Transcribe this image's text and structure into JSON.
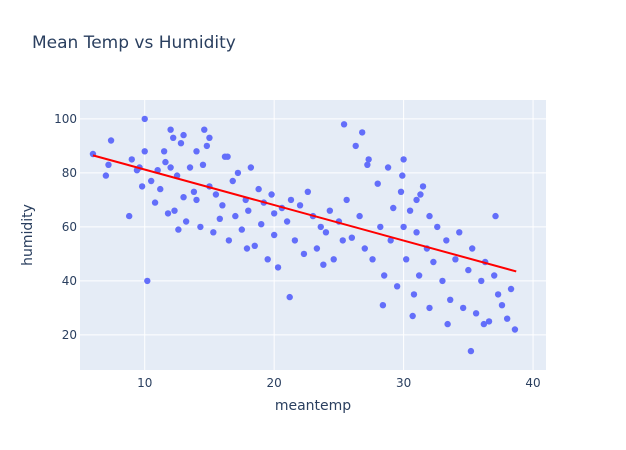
{
  "chart_data": {
    "type": "scatter",
    "title": "Mean Temp vs Humidity",
    "xlabel": "meantemp",
    "ylabel": "humidity",
    "xlim": [
      5,
      41
    ],
    "ylim": [
      7,
      107
    ],
    "x_ticks": [
      10,
      20,
      30,
      40
    ],
    "y_ticks": [
      20,
      40,
      60,
      80,
      100
    ],
    "grid": true,
    "legend": "none",
    "marker_color": "#636efa",
    "plot_background": "#e5ecf6",
    "trendline": {
      "color": "#ff0000",
      "x": [
        6.0,
        38.7
      ],
      "y": [
        86.5,
        43.5
      ]
    },
    "series": [
      {
        "x": [
          6.0,
          7.0,
          7.4,
          7.2,
          8.8,
          9.0,
          9.4,
          9.6,
          9.8,
          10.0,
          10.0,
          10.5,
          10.8,
          11.0,
          11.2,
          11.5,
          11.8,
          12.0,
          12.0,
          12.3,
          12.5,
          12.8,
          13.0,
          13.0,
          13.2,
          13.5,
          13.8,
          14.0,
          14.0,
          14.3,
          14.5,
          14.8,
          15.0,
          15.0,
          15.3,
          15.5,
          15.8,
          16.0,
          16.2,
          16.5,
          16.8,
          17.0,
          17.2,
          17.5,
          17.8,
          18.0,
          18.2,
          18.5,
          18.8,
          19.0,
          19.2,
          19.5,
          19.8,
          20.0,
          20.0,
          20.3,
          20.6,
          21.0,
          21.3,
          21.6,
          22.0,
          22.3,
          22.6,
          23.0,
          23.3,
          23.6,
          24.0,
          24.3,
          24.6,
          25.0,
          25.3,
          25.6,
          26.0,
          26.3,
          26.6,
          27.0,
          27.3,
          27.6,
          28.0,
          28.2,
          28.5,
          28.8,
          29.0,
          29.2,
          29.5,
          29.8,
          30.0,
          30.0,
          30.2,
          30.5,
          30.8,
          31.0,
          31.0,
          31.2,
          31.5,
          31.8,
          32.0,
          32.0,
          32.3,
          32.6,
          33.0,
          33.3,
          33.6,
          34.0,
          34.3,
          34.6,
          35.0,
          35.3,
          35.6,
          36.0,
          36.3,
          36.6,
          37.0,
          37.3,
          37.6,
          38.0,
          38.3,
          38.6,
          12.2,
          14.6,
          16.4,
          25.4,
          26.8,
          27.2,
          29.9,
          31.3,
          35.2,
          37.1,
          10.2,
          12.6,
          17.9,
          21.2,
          23.8,
          28.4,
          30.7,
          33.4,
          36.2,
          11.6
        ],
        "y": [
          87,
          79,
          92,
          83,
          64,
          85,
          81,
          82,
          75,
          100,
          88,
          77,
          69,
          81,
          74,
          88,
          65,
          82,
          96,
          66,
          79,
          91,
          71,
          94,
          62,
          82,
          73,
          70,
          88,
          60,
          83,
          90,
          75,
          93,
          58,
          72,
          63,
          68,
          86,
          55,
          77,
          64,
          80,
          59,
          70,
          66,
          82,
          53,
          74,
          61,
          69,
          48,
          72,
          57,
          65,
          45,
          67,
          62,
          70,
          55,
          68,
          50,
          73,
          64,
          52,
          60,
          58,
          66,
          48,
          62,
          55,
          70,
          56,
          90,
          64,
          52,
          85,
          48,
          76,
          60,
          42,
          82,
          55,
          67,
          38,
          73,
          60,
          85,
          48,
          66,
          35,
          58,
          70,
          42,
          75,
          52,
          64,
          30,
          47,
          60,
          40,
          55,
          33,
          48,
          58,
          30,
          44,
          52,
          28,
          40,
          47,
          25,
          42,
          35,
          31,
          26,
          37,
          22,
          93,
          96,
          86,
          98,
          95,
          83,
          79,
          72,
          14,
          64,
          40,
          59,
          52,
          34,
          46,
          31,
          27,
          24,
          24,
          84
        ]
      }
    ]
  }
}
